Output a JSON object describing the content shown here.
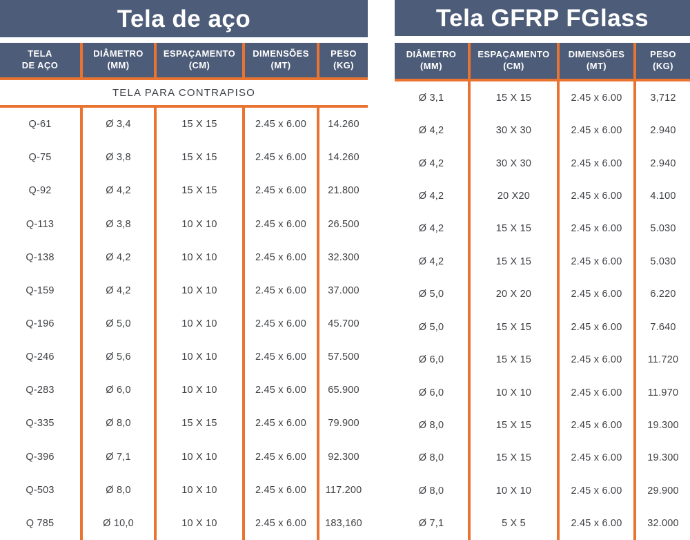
{
  "colors": {
    "header_background": "#4d5c78",
    "divider_orange": "#e97431",
    "body_text": "#3e4044"
  },
  "chart_data": [
    {
      "type": "table",
      "title": "Tela de aço",
      "columns": [
        [
          "TELA",
          "DE AÇO"
        ],
        [
          "DIÂMETRO",
          "(MM)"
        ],
        [
          "ESPAÇAMENTO",
          "(CM)"
        ],
        [
          "DIMENSÕES",
          "(MT)"
        ],
        [
          "PESO",
          "(KG)"
        ]
      ],
      "section_label": "TELA PARA CONTRAPISO",
      "rows": [
        [
          "Q-61",
          "Ø 3,4",
          "15 X 15",
          "2.45 x 6.00",
          "14.260"
        ],
        [
          "Q-75",
          "Ø 3,8",
          "15 X 15",
          "2.45 x 6.00",
          "14.260"
        ],
        [
          "Q-92",
          "Ø 4,2",
          "15 X 15",
          "2.45 x 6.00",
          "21.800"
        ],
        [
          "Q-113",
          "Ø 3,8",
          "10 X 10",
          "2.45 x 6.00",
          "26.500"
        ],
        [
          "Q-138",
          "Ø 4,2",
          "10 X 10",
          "2.45 x 6.00",
          "32.300"
        ],
        [
          "Q-159",
          "Ø 4,2",
          "10 X 10",
          "2.45 x 6.00",
          "37.000"
        ],
        [
          "Q-196",
          "Ø 5,0",
          "10 X 10",
          "2.45 x 6.00",
          "45.700"
        ],
        [
          "Q-246",
          "Ø 5,6",
          "10 X 10",
          "2.45 x 6.00",
          "57.500"
        ],
        [
          "Q-283",
          "Ø 6,0",
          "10 X 10",
          "2.45 x 6.00",
          "65.900"
        ],
        [
          "Q-335",
          "Ø 8,0",
          "15 X 15",
          "2.45 x 6.00",
          "79.900"
        ],
        [
          "Q-396",
          "Ø 7,1",
          "10 X 10",
          "2.45 x 6.00",
          "92.300"
        ],
        [
          "Q-503",
          "Ø 8,0",
          "10 X 10",
          "2.45 x 6.00",
          "117.200"
        ],
        [
          "Q 785",
          "Ø 10,0",
          "10 X 10",
          "2.45 x 6.00",
          "183,160"
        ]
      ]
    },
    {
      "type": "table",
      "title": "Tela GFRP FGlass",
      "columns": [
        [
          "DIÂMETRO",
          "(MM)"
        ],
        [
          "ESPAÇAMENTO",
          "(CM)"
        ],
        [
          "DIMENSÕES",
          "(MT)"
        ],
        [
          "PESO",
          "(KG)"
        ]
      ],
      "rows": [
        [
          "Ø 3,1",
          "15 X 15",
          "2.45 x 6.00",
          "3,712"
        ],
        [
          "Ø 4,2",
          "30 X 30",
          "2.45 x 6.00",
          "2.940"
        ],
        [
          "Ø 4,2",
          "30 X 30",
          "2.45 x 6.00",
          "2.940"
        ],
        [
          "Ø 4,2",
          "20 X20",
          "2.45 x 6.00",
          "4.100"
        ],
        [
          "Ø 4,2",
          "15 X 15",
          "2.45 x 6.00",
          "5.030"
        ],
        [
          "Ø 4,2",
          "15 X 15",
          "2.45 x 6.00",
          "5.030"
        ],
        [
          "Ø 5,0",
          "20 X 20",
          "2.45 x 6.00",
          "6.220"
        ],
        [
          "Ø 5,0",
          "15 X 15",
          "2.45 x 6.00",
          "7.640"
        ],
        [
          "Ø 6,0",
          "15 X 15",
          "2.45 x 6.00",
          "11.720"
        ],
        [
          "Ø 6,0",
          "10 X 10",
          "2.45 x 6.00",
          "11.970"
        ],
        [
          "Ø 8,0",
          "15 X 15",
          "2.45 x 6.00",
          "19.300"
        ],
        [
          "Ø 8,0",
          "15 X 15",
          "2.45 x 6.00",
          "19.300"
        ],
        [
          "Ø 8,0",
          "10 X 10",
          "2.45 x 6.00",
          "29.900"
        ],
        [
          "Ø 7,1",
          "5 X 5",
          "2.45 x 6.00",
          "32.000"
        ]
      ]
    }
  ]
}
